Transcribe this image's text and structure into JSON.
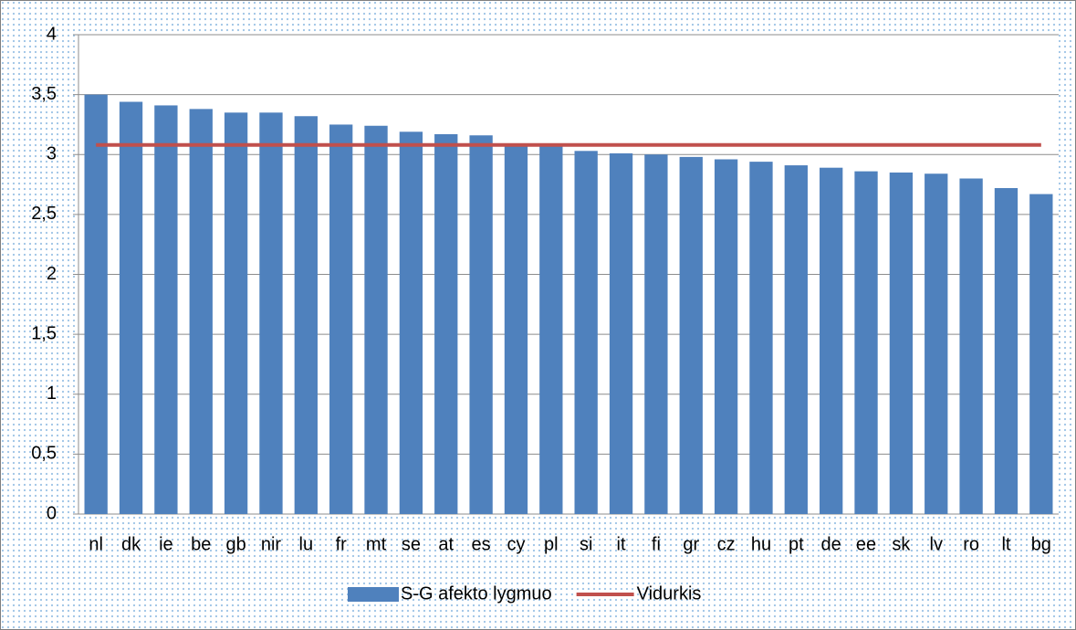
{
  "chart_data": {
    "type": "bar",
    "categories": [
      "nl",
      "dk",
      "ie",
      "be",
      "gb",
      "nir",
      "lu",
      "fr",
      "mt",
      "se",
      "at",
      "es",
      "cy",
      "pl",
      "si",
      "it",
      "fi",
      "gr",
      "cz",
      "hu",
      "pt",
      "de",
      "ee",
      "sk",
      "lv",
      "ro",
      "lt",
      "bg"
    ],
    "series": [
      {
        "name": "S-G afekto lygmuo",
        "type": "bar",
        "color": "#4f81bd",
        "values": [
          3.5,
          3.44,
          3.41,
          3.38,
          3.35,
          3.35,
          3.32,
          3.25,
          3.24,
          3.19,
          3.17,
          3.16,
          3.09,
          3.08,
          3.03,
          3.01,
          3.0,
          2.98,
          2.96,
          2.94,
          2.91,
          2.89,
          2.86,
          2.85,
          2.84,
          2.8,
          2.72,
          2.67
        ]
      },
      {
        "name": "Vidurkis",
        "type": "line",
        "color": "#c0504d",
        "values": [
          3.08,
          3.08,
          3.08,
          3.08,
          3.08,
          3.08,
          3.08,
          3.08,
          3.08,
          3.08,
          3.08,
          3.08,
          3.08,
          3.08,
          3.08,
          3.08,
          3.08,
          3.08,
          3.08,
          3.08,
          3.08,
          3.08,
          3.08,
          3.08,
          3.08,
          3.08,
          3.08,
          3.08
        ]
      }
    ],
    "ylim": [
      0,
      4
    ],
    "yticks": [
      0,
      {
        "value": 0.5,
        "label": "0,5"
      },
      1,
      {
        "value": 1.5,
        "label": "1,5"
      },
      2,
      {
        "value": 2.5,
        "label": "2,5"
      },
      3,
      {
        "value": 3.5,
        "label": "3,5"
      },
      4
    ],
    "grid": true,
    "legend": "bottom"
  }
}
